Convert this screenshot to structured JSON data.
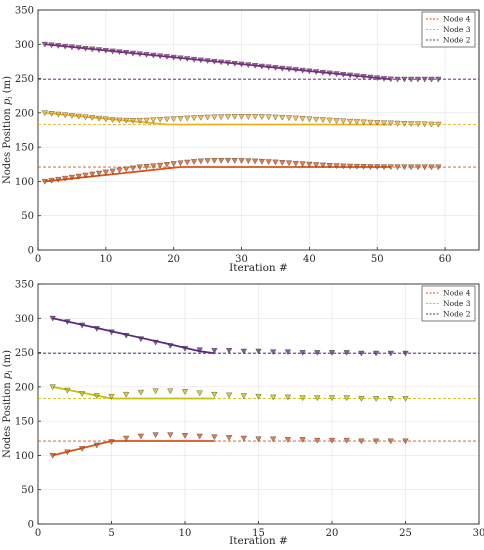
{
  "chart_data": [
    {
      "type": "line",
      "xlabel": "Iteration #",
      "ylabel": "Nodes Position p_i (m)",
      "ylabel_parts": [
        "Nodes Position ",
        "p",
        "i",
        " (m)"
      ],
      "xlim": [
        0,
        65
      ],
      "ylim": [
        0,
        350
      ],
      "xticks": [
        "0",
        "10",
        "20",
        "30",
        "40",
        "50",
        "60"
      ],
      "yticks": [
        "0",
        "50",
        "100",
        "150",
        "200",
        "250",
        "300",
        "350"
      ],
      "grid": true,
      "legend_position": "top-right",
      "legend": [
        "Node 4",
        "Node 3",
        "Node 2"
      ],
      "series": [
        {
          "name": "Node 4",
          "color": "#d95319",
          "target": 121,
          "line": {
            "x": [
              1,
              21,
              52
            ],
            "y": [
              100,
              121,
              121
            ]
          },
          "markers_x": [
            1,
            2,
            3,
            4,
            5,
            6,
            7,
            8,
            9,
            10,
            11,
            12,
            13,
            14,
            15,
            16,
            17,
            18,
            19,
            20,
            21,
            22,
            23,
            24,
            25,
            26,
            27,
            28,
            29,
            30,
            31,
            32,
            33,
            34,
            35,
            36,
            37,
            38,
            39,
            40,
            41,
            42,
            43,
            44,
            45,
            46,
            47,
            48,
            49,
            50,
            51,
            52,
            53,
            54,
            55,
            56,
            57,
            58,
            59
          ],
          "markers_y": [
            100,
            101.5,
            103,
            104.5,
            106,
            107.5,
            109,
            110.5,
            112,
            113.5,
            115,
            116.5,
            118,
            119.5,
            121,
            121.7,
            122.6,
            123.6,
            124.7,
            125.8,
            126.9,
            128,
            128.9,
            129.7,
            130.2,
            130.5,
            130.6,
            130.6,
            130.5,
            130.3,
            130,
            129.6,
            129.2,
            128.7,
            128.2,
            127.6,
            127,
            126.3,
            125.7,
            125,
            124.4,
            123.8,
            123.2,
            122.8,
            122.4,
            122.1,
            121.9,
            121.7,
            121.5,
            121.4,
            121.3,
            121.2,
            121.2,
            121.1,
            121.1,
            121.1,
            121,
            121,
            121
          ]
        },
        {
          "name": "Node 3",
          "color": "#edb120",
          "target": 183,
          "line": {
            "x": [
              1,
              19,
              52
            ],
            "y": [
              200,
              183,
              183
            ]
          },
          "markers_x": [
            1,
            2,
            3,
            4,
            5,
            6,
            7,
            8,
            9,
            10,
            11,
            12,
            13,
            14,
            15,
            16,
            17,
            18,
            19,
            20,
            21,
            22,
            23,
            24,
            25,
            26,
            27,
            28,
            29,
            30,
            31,
            32,
            33,
            34,
            35,
            36,
            37,
            38,
            39,
            40,
            41,
            42,
            43,
            44,
            45,
            46,
            47,
            48,
            49,
            50,
            51,
            52,
            53,
            54,
            55,
            56,
            57,
            58,
            59
          ],
          "markers_y": [
            200,
            199,
            198,
            197,
            196,
            195,
            194,
            193,
            192,
            191,
            190,
            189.4,
            189,
            188.8,
            188.9,
            189.2,
            189.7,
            190.2,
            190.8,
            191.3,
            191.8,
            192.3,
            192.8,
            193.2,
            193.6,
            193.9,
            194.2,
            194.4,
            194.6,
            194.7,
            194.7,
            194.6,
            194.4,
            194.1,
            193.7,
            193.3,
            192.8,
            192.3,
            191.7,
            191.1,
            190.5,
            189.9,
            189.3,
            188.7,
            188.1,
            187.6,
            187.1,
            186.6,
            186.2,
            185.8,
            185.4,
            185.1,
            184.8,
            184.5,
            184.2,
            184,
            183.7,
            183.5,
            183.3
          ]
        },
        {
          "name": "Node 2",
          "color": "#7e2f8e",
          "target": 249,
          "line": {
            "x": [
              1,
              52
            ],
            "y": [
              300,
              249
            ]
          },
          "markers_x": [
            1,
            2,
            3,
            4,
            5,
            6,
            7,
            8,
            9,
            10,
            11,
            12,
            13,
            14,
            15,
            16,
            17,
            18,
            19,
            20,
            21,
            22,
            23,
            24,
            25,
            26,
            27,
            28,
            29,
            30,
            31,
            32,
            33,
            34,
            35,
            36,
            37,
            38,
            39,
            40,
            41,
            42,
            43,
            44,
            45,
            46,
            47,
            48,
            49,
            50,
            51,
            52,
            53,
            54,
            55,
            56,
            57,
            58,
            59
          ],
          "markers_y": [
            300,
            299,
            298,
            297,
            296,
            295,
            294,
            293,
            292,
            291,
            290,
            289,
            288,
            287,
            286,
            285,
            284,
            283,
            282,
            281,
            280,
            279,
            278,
            277,
            276,
            275,
            274,
            273,
            272,
            271,
            270,
            269,
            268,
            267,
            266,
            265,
            264,
            263,
            262,
            261,
            260,
            259,
            258,
            257,
            256,
            255,
            254,
            253,
            252,
            251,
            250,
            249.3,
            249,
            249,
            249,
            249,
            249,
            249,
            249
          ]
        }
      ]
    },
    {
      "type": "line",
      "xlabel": "Iteration #",
      "ylabel": "Nodes Position p_i (m)",
      "ylabel_parts": [
        "Nodes Position ",
        "p",
        "i",
        " (m)"
      ],
      "xlim": [
        0,
        30
      ],
      "ylim": [
        0,
        350
      ],
      "xticks": [
        "0",
        "5",
        "10",
        "15",
        "20",
        "25",
        "30"
      ],
      "yticks": [
        "0",
        "50",
        "100",
        "150",
        "200",
        "250",
        "300",
        "350"
      ],
      "grid": true,
      "legend_position": "top-right",
      "legend": [
        "Node 4",
        "Node 3",
        "Node 2"
      ],
      "series": [
        {
          "name": "Node 4",
          "color": "#d95319",
          "target": 121,
          "line": {
            "x": [
              1,
              5,
              12
            ],
            "y": [
              100,
              121,
              121
            ]
          },
          "markers_x": [
            1,
            2,
            3,
            4,
            5,
            6,
            7,
            8,
            9,
            10,
            11,
            12,
            13,
            14,
            15,
            16,
            17,
            18,
            19,
            20,
            21,
            22,
            23,
            24,
            25
          ],
          "markers_y": [
            100,
            105,
            110,
            115,
            120,
            125,
            128,
            130,
            130,
            129,
            128,
            127,
            126,
            125,
            124,
            124,
            123,
            123,
            122,
            122,
            122,
            121,
            121,
            121,
            121
          ]
        },
        {
          "name": "Node 3",
          "color": "#c2c20a",
          "target": 183,
          "line": {
            "x": [
              1,
              5,
              12
            ],
            "y": [
              200,
              183,
              183
            ]
          },
          "markers_x": [
            1,
            2,
            3,
            4,
            5,
            6,
            7,
            8,
            9,
            10,
            11,
            12,
            13,
            14,
            15,
            16,
            17,
            18,
            19,
            20,
            21,
            22,
            23,
            24,
            25
          ],
          "markers_y": [
            200,
            195,
            190,
            187,
            186,
            189,
            192,
            194,
            194,
            193,
            191,
            189,
            188,
            187,
            186,
            185,
            185,
            184,
            184,
            184,
            184,
            183,
            183,
            183,
            183
          ]
        },
        {
          "name": "Node 2",
          "color": "#5b2a86",
          "target": 249,
          "line": {
            "x": [
              1,
              9,
              11,
              12
            ],
            "y": [
              300,
              262,
              252,
              249
            ]
          },
          "markers_x": [
            1,
            2,
            3,
            4,
            5,
            6,
            7,
            8,
            9,
            10,
            11,
            12,
            13,
            14,
            15,
            16,
            17,
            18,
            19,
            20,
            21,
            22,
            23,
            24,
            25
          ],
          "markers_y": [
            300,
            295,
            290,
            285,
            280,
            275,
            270,
            265,
            260,
            256,
            254,
            253,
            253,
            252,
            252,
            251,
            251,
            250,
            250,
            250,
            250,
            249,
            249,
            249,
            249
          ]
        }
      ]
    }
  ]
}
